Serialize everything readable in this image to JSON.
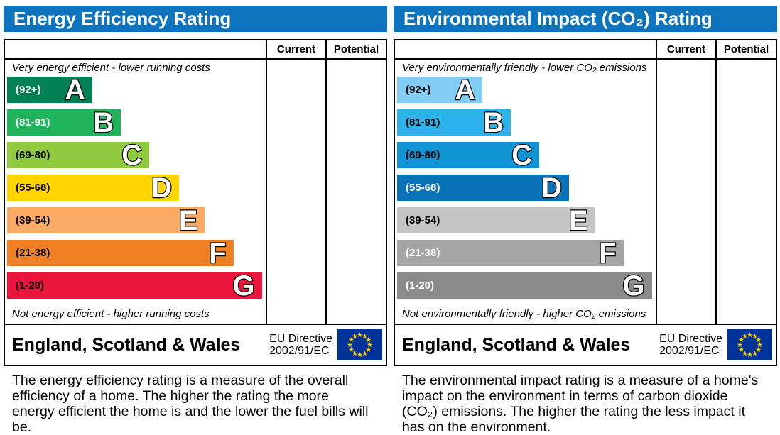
{
  "panels": [
    {
      "title": "Energy Efficiency Rating",
      "header_color": "#0d74bd",
      "columns": {
        "current": "Current",
        "potential": "Potential"
      },
      "top_label": "Very energy efficient - lower running costs",
      "bottom_label": "Not energy efficient - higher running costs",
      "bands": [
        {
          "letter": "A",
          "range": "(92+)",
          "color": "#008054",
          "text_color": "#ffffff",
          "width_pct": 33
        },
        {
          "letter": "B",
          "range": "(81-91)",
          "color": "#1fb35b",
          "text_color": "#ffffff",
          "width_pct": 44
        },
        {
          "letter": "C",
          "range": "(69-80)",
          "color": "#8fca3f",
          "text_color": "#000000",
          "width_pct": 55
        },
        {
          "letter": "D",
          "range": "(55-68)",
          "color": "#ffd500",
          "text_color": "#000000",
          "width_pct": 66.5
        },
        {
          "letter": "E",
          "range": "(39-54)",
          "color": "#fbaa65",
          "text_color": "#000000",
          "width_pct": 76.5
        },
        {
          "letter": "F",
          "range": "(21-38)",
          "color": "#ef8023",
          "text_color": "#000000",
          "width_pct": 87.5
        },
        {
          "letter": "G",
          "range": "(1-20)",
          "color": "#e9153b",
          "text_color": "#000000",
          "width_pct": 98.5
        }
      ],
      "footer": {
        "region": "England, Scotland & Wales",
        "directive_line1": "EU Directive",
        "directive_line2": "2002/91/EC"
      },
      "description": "The energy efficiency rating is a measure of the overall efficiency of a home. The higher the rating the more energy efficient the home is and the lower the fuel bills will be."
    },
    {
      "title": "Environmental Impact (CO₂) Rating",
      "header_color": "#0d74bd",
      "columns": {
        "current": "Current",
        "potential": "Potential"
      },
      "top_label": "Very environmentally friendly - lower CO₂ emissions",
      "bottom_label": "Not environmentally friendly - higher CO₂ emissions",
      "bands": [
        {
          "letter": "A",
          "range": "(92+)",
          "color": "#82cdf3",
          "text_color": "#000000",
          "width_pct": 33
        },
        {
          "letter": "B",
          "range": "(81-91)",
          "color": "#2eb2ec",
          "text_color": "#000000",
          "width_pct": 44
        },
        {
          "letter": "C",
          "range": "(69-80)",
          "color": "#1094d4",
          "text_color": "#000000",
          "width_pct": 55
        },
        {
          "letter": "D",
          "range": "(55-68)",
          "color": "#0a72b9",
          "text_color": "#ffffff",
          "width_pct": 66.5
        },
        {
          "letter": "E",
          "range": "(39-54)",
          "color": "#c5c5c5",
          "text_color": "#000000",
          "width_pct": 76.5
        },
        {
          "letter": "F",
          "range": "(21-38)",
          "color": "#a5a5a5",
          "text_color": "#ffffff",
          "width_pct": 87.5
        },
        {
          "letter": "G",
          "range": "(1-20)",
          "color": "#8b8b8b",
          "text_color": "#ffffff",
          "width_pct": 98.5
        }
      ],
      "footer": {
        "region": "England, Scotland & Wales",
        "directive_line1": "EU Directive",
        "directive_line2": "2002/91/EC"
      },
      "description": "The environmental impact rating is a measure of a home's impact on the environment in terms of carbon dioxide (CO₂) emissions. The higher the rating the less impact it has on the environment."
    }
  ],
  "flag": {
    "background": "#003399",
    "star_color": "#ffcc00",
    "star_count": 12
  },
  "chart_data": [
    {
      "type": "bar",
      "title": "Energy Efficiency Rating",
      "categories": [
        "A",
        "B",
        "C",
        "D",
        "E",
        "F",
        "G"
      ],
      "tick_ranges": [
        "92+",
        "81-91",
        "69-80",
        "55-68",
        "39-54",
        "21-38",
        "1-20"
      ],
      "values": [
        33,
        44,
        55,
        66.5,
        76.5,
        87.5,
        98.5
      ],
      "value_note": "bar lengths as % of chart column width (fixed EPC staircase design)",
      "series": [
        {
          "name": "Current",
          "values": []
        },
        {
          "name": "Potential",
          "values": []
        }
      ],
      "annotations": [
        "Very energy efficient - lower running costs",
        "Not energy efficient - higher running costs"
      ],
      "legend_position": "none",
      "grid": false
    },
    {
      "type": "bar",
      "title": "Environmental Impact (CO₂) Rating",
      "categories": [
        "A",
        "B",
        "C",
        "D",
        "E",
        "F",
        "G"
      ],
      "tick_ranges": [
        "92+",
        "81-91",
        "69-80",
        "55-68",
        "39-54",
        "21-38",
        "1-20"
      ],
      "values": [
        33,
        44,
        55,
        66.5,
        76.5,
        87.5,
        98.5
      ],
      "value_note": "bar lengths as % of chart column width (fixed EPC staircase design)",
      "series": [
        {
          "name": "Current",
          "values": []
        },
        {
          "name": "Potential",
          "values": []
        }
      ],
      "annotations": [
        "Very environmentally friendly - lower CO₂ emissions",
        "Not environmentally friendly - higher CO₂ emissions"
      ],
      "legend_position": "none",
      "grid": false
    }
  ]
}
